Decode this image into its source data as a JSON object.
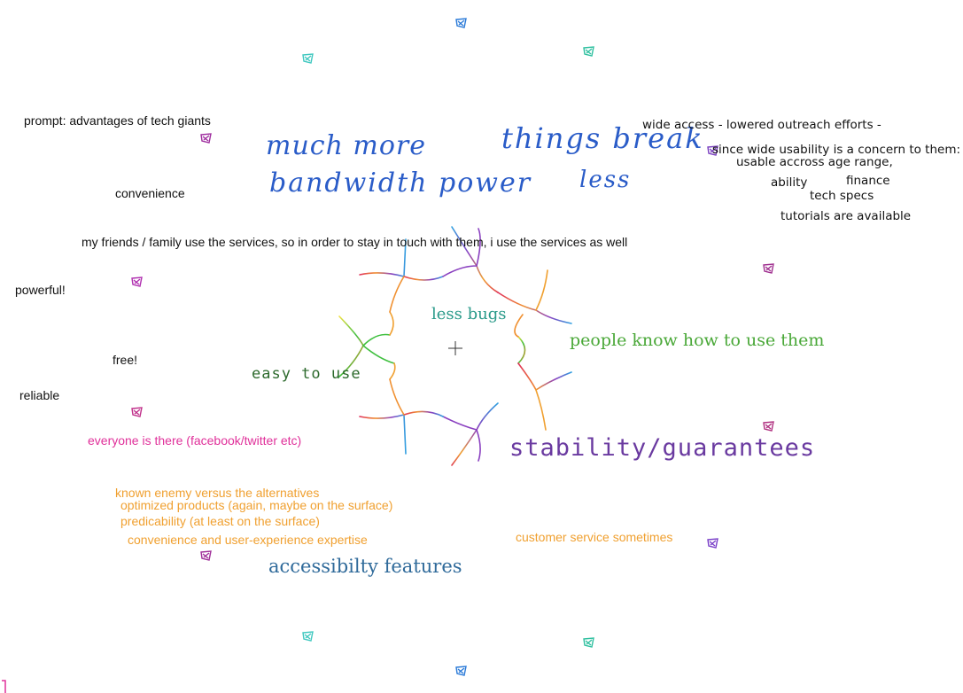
{
  "canvas": {
    "title": "prompt: advantages of tech giants"
  },
  "notes": {
    "prompt": "prompt: advantages of tech giants",
    "convenience": "convenience",
    "friends": "my friends / family use the services, so in order to stay in touch with them, i use the services as well",
    "powerful": "powerful!",
    "free": "free!",
    "reliable": "reliable",
    "everyone": "everyone is there (facebook/twitter etc)",
    "known_enemy": "known enemy versus the alternatives",
    "optimized": "optimized products (again, maybe on the surface)",
    "predicability": "predicability (at least on the surface)",
    "convenience_ux": "convenience and user-experience expertise",
    "customer_service": "customer service sometimes",
    "wide_access": "wide access - lowered outreach efforts -",
    "since_wide": "since wide usability is a concern to them:",
    "usable_age": "usable accross age range,",
    "ability": "ability",
    "finance": "finance",
    "tech_specs": "tech specs",
    "tutorials": "tutorials are available"
  },
  "handwriting": {
    "much_more": "much more",
    "bandwidth": "bandwidth power",
    "things_break": "things break",
    "less": "less"
  },
  "centerpiece": {
    "less_bugs": "less bugs",
    "easy_to_use": "easy to use",
    "people_know": "people know how to use them",
    "stability": "stability/guarantees",
    "accessibility": "accessibilty features"
  },
  "colors": {
    "black": "#111111",
    "pink": "#e0309a",
    "orange": "#f0a030",
    "blue_hand": "#2a5cc8",
    "teal": "#2a9a8a",
    "green": "#4aa838",
    "dark_green": "#2d6a2d",
    "purple": "#6a3aa0",
    "steel_blue": "#2f6a9a"
  },
  "icons": [
    "scribble-icon"
  ]
}
